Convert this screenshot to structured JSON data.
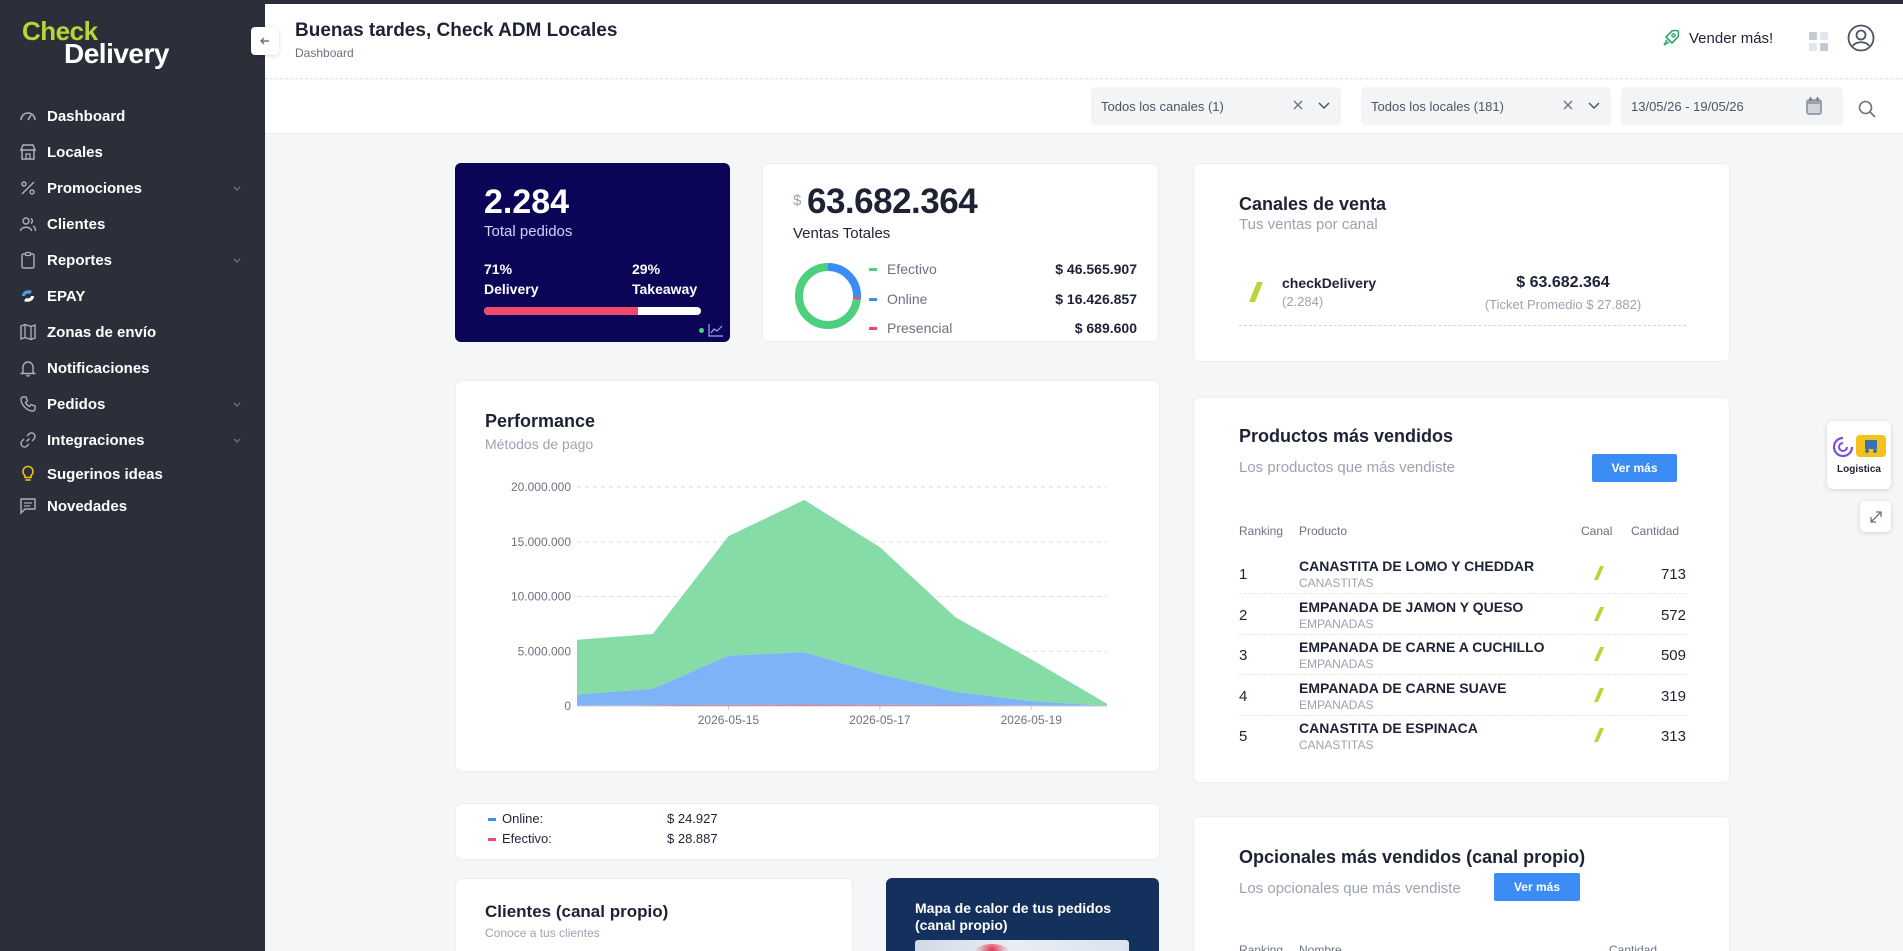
{
  "brand": {
    "line1": "Check",
    "line2": "Delivery"
  },
  "sidebar": {
    "items": [
      {
        "label": "Dashboard",
        "icon": "dashboard-icon"
      },
      {
        "label": "Locales",
        "icon": "store-icon"
      },
      {
        "label": "Promociones",
        "icon": "percent-icon",
        "expandable": true
      },
      {
        "label": "Clientes",
        "icon": "users-icon"
      },
      {
        "label": "Reportes",
        "icon": "clipboard-icon",
        "expandable": true
      },
      {
        "label": "EPAY",
        "icon": "epay-icon"
      },
      {
        "label": "Zonas de envío",
        "icon": "map-icon"
      },
      {
        "label": "Notificaciones",
        "icon": "bell-icon"
      },
      {
        "label": "Pedidos",
        "icon": "phone-icon",
        "expandable": true
      },
      {
        "label": "Integraciones",
        "icon": "link-icon",
        "expandable": true
      },
      {
        "label": "Sugerinos ideas",
        "icon": "lightbulb-icon"
      },
      {
        "label": "Novedades",
        "icon": "message-icon"
      }
    ]
  },
  "header": {
    "greeting": "Buenas tardes, Check ADM Locales",
    "breadcrumb": "Dashboard",
    "sell_more": "Vender más!"
  },
  "filters": {
    "channels": "Todos los canales (1)",
    "stores": "Todos los locales (181)",
    "date_range": "13/05/26 - 19/05/26"
  },
  "total_orders": {
    "value": "2.284",
    "label": "Total pedidos",
    "delivery_pct": "71%",
    "delivery_label": "Delivery",
    "takeaway_pct": "29%",
    "takeaway_label": "Takeaway",
    "delivery_fraction": 0.71
  },
  "total_sales": {
    "currency": "$",
    "value": "63.682.364",
    "label": "Ventas Totales",
    "methods": [
      {
        "name": "Efectivo",
        "amount": "$ 46.565.907",
        "color": "#4cd07d",
        "share": 0.731
      },
      {
        "name": "Online",
        "amount": "$ 16.426.857",
        "color": "#3b8cf5",
        "share": 0.258
      },
      {
        "name": "Presencial",
        "amount": "$ 689.600",
        "color": "#f0486a",
        "share": 0.011
      }
    ]
  },
  "channels_card": {
    "title": "Canales de venta",
    "subtitle": "Tus ventas por canal",
    "rows": [
      {
        "name": "checkDelivery",
        "orders": "(2.284)",
        "amount": "$ 63.682.364",
        "ticket": "(Ticket Promedio $ 27.882)"
      }
    ]
  },
  "performance": {
    "title": "Performance",
    "subtitle": "Métodos de pago"
  },
  "chart_data": {
    "type": "area",
    "title": "Performance",
    "subtitle": "Métodos de pago",
    "x": [
      "2026-05-13",
      "2026-05-14",
      "2026-05-15",
      "2026-05-16",
      "2026-05-17",
      "2026-05-18",
      "2026-05-19",
      "2026-05-20"
    ],
    "x_tick_labels": [
      "2026-05-15",
      "2026-05-17",
      "2026-05-19"
    ],
    "y_tick_labels": [
      "0",
      "5.000.000",
      "10.000.000",
      "15.000.000",
      "20.000.000"
    ],
    "ylim": [
      0,
      20000000
    ],
    "stacked": true,
    "grid": true,
    "series": [
      {
        "name": "Presencial",
        "color": "#f0486a",
        "values": [
          50000,
          80000,
          100000,
          120000,
          110000,
          90000,
          60000,
          10000
        ]
      },
      {
        "name": "Online",
        "color": "#7fb3f8",
        "values": [
          1000000,
          1500000,
          4500000,
          4800000,
          2800000,
          1200000,
          400000,
          0
        ]
      },
      {
        "name": "Efectivo",
        "color": "#86dca6",
        "values": [
          5000000,
          5000000,
          10900000,
          13900000,
          11600000,
          6800000,
          3800000,
          200000
        ]
      }
    ]
  },
  "ticket_legend": [
    {
      "name": "Online:",
      "value": "$ 24.927",
      "color": "#3b8cf5"
    },
    {
      "name": "Efectivo:",
      "value": "$ 28.887",
      "color": "#f0486a"
    }
  ],
  "top_products": {
    "title": "Productos más vendidos",
    "subtitle": "Los productos que más vendiste",
    "button": "Ver más",
    "headers": {
      "rank": "Ranking",
      "product": "Producto",
      "channel": "Canal",
      "qty": "Cantidad"
    },
    "rows": [
      {
        "rank": "1",
        "name": "CANASTITA DE LOMO Y CHEDDAR",
        "category": "CANASTITAS",
        "qty": "713"
      },
      {
        "rank": "2",
        "name": "EMPANADA DE JAMON Y QUESO",
        "category": "EMPANADAS",
        "qty": "572"
      },
      {
        "rank": "3",
        "name": "EMPANADA DE CARNE A CUCHILLO",
        "category": "EMPANADAS",
        "qty": "509"
      },
      {
        "rank": "4",
        "name": "EMPANADA DE CARNE SUAVE",
        "category": "EMPANADAS",
        "qty": "319"
      },
      {
        "rank": "5",
        "name": "CANASTITA DE ESPINACA",
        "category": "CANASTITAS",
        "qty": "313"
      }
    ]
  },
  "top_options": {
    "title": "Opcionales más vendidos (canal propio)",
    "subtitle": "Los opcionales que más vendiste",
    "button": "Ver más",
    "headers": {
      "rank": "Ranking",
      "name": "Nombre",
      "qty": "Cantidad"
    }
  },
  "clients_card": {
    "title": "Clientes (canal propio)",
    "subtitle": "Conoce a tus clientes"
  },
  "heatmap_card": {
    "title": "Mapa de calor de tus pedidos (canal propio)"
  },
  "logistics_widget": {
    "label": "Logistica"
  }
}
